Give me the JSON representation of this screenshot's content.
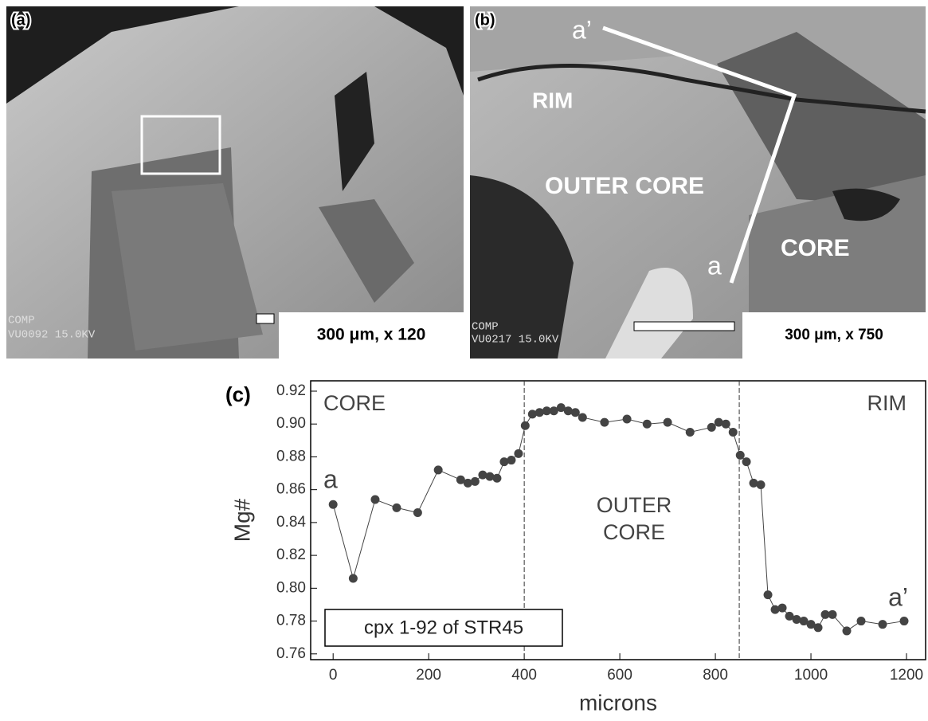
{
  "panels": [
    {
      "label": "(a)",
      "scale": "300 μm, x 120",
      "overlay": [
        "COMP",
        "VU0092  15.0KV"
      ]
    },
    {
      "label": "(b)",
      "scale": "300 μm, x 750",
      "overlay": [
        "COMP",
        "VU0217  15.0KV"
      ],
      "regions": [
        "RIM",
        "OUTER  CORE",
        "CORE"
      ],
      "ends": [
        "a",
        "a’"
      ]
    }
  ],
  "chart_data": {
    "type": "line",
    "panel_label": "(c)",
    "x_label": "microns",
    "y_label": "Mg#",
    "x": [
      0,
      42,
      88,
      133,
      177,
      220,
      267,
      282,
      297,
      313,
      328,
      343,
      358,
      373,
      388,
      402,
      417,
      432,
      447,
      462,
      477,
      492,
      507,
      522,
      568,
      615,
      657,
      700,
      747,
      792,
      807,
      822,
      837,
      852,
      865,
      880,
      895,
      910,
      925,
      940,
      955,
      970,
      985,
      1000,
      1015,
      1030,
      1045,
      1075,
      1105,
      1150,
      1195
    ],
    "series": [
      {
        "name": "cpx 1-92 of STR45",
        "color": "#444444",
        "values": [
          0.851,
          0.806,
          0.854,
          0.849,
          0.846,
          0.872,
          0.866,
          0.864,
          0.865,
          0.869,
          0.868,
          0.867,
          0.877,
          0.878,
          0.882,
          0.899,
          0.906,
          0.907,
          0.908,
          0.908,
          0.91,
          0.908,
          0.907,
          0.904,
          0.901,
          0.903,
          0.9,
          0.901,
          0.895,
          0.898,
          0.901,
          0.9,
          0.895,
          0.881,
          0.877,
          0.864,
          0.863,
          0.796,
          0.787,
          0.788,
          0.783,
          0.781,
          0.78,
          0.778,
          0.776,
          0.784,
          0.784,
          0.774,
          0.78,
          0.778,
          0.78
        ]
      }
    ],
    "xlim": [
      -47,
      1240
    ],
    "ylim": [
      0.7565,
      0.9263
    ],
    "xticks": [
      0,
      200,
      400,
      600,
      800,
      1000,
      1200
    ],
    "yticks": [
      0.76,
      0.78,
      {
        "value": 0.8,
        "label": "0.80"
      },
      0.82,
      0.84,
      0.86,
      0.88,
      {
        "value": 0.9,
        "label": "0.90"
      },
      0.92
    ],
    "boundaries": [
      400,
      850
    ],
    "annotations": [
      "CORE",
      "OUTER",
      "CORE",
      "RIM",
      "a",
      "a’"
    ]
  }
}
